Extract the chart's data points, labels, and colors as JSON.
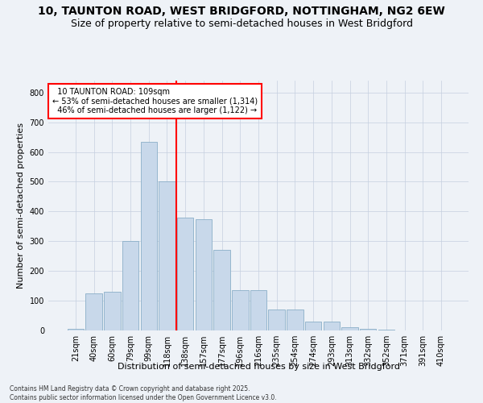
{
  "title_line1": "10, TAUNTON ROAD, WEST BRIDGFORD, NOTTINGHAM, NG2 6EW",
  "title_line2": "Size of property relative to semi-detached houses in West Bridgford",
  "xlabel": "Distribution of semi-detached houses by size in West Bridgford",
  "ylabel": "Number of semi-detached properties",
  "footnote": "Contains HM Land Registry data © Crown copyright and database right 2025.\nContains public sector information licensed under the Open Government Licence v3.0.",
  "bar_labels": [
    "21sqm",
    "40sqm",
    "60sqm",
    "79sqm",
    "99sqm",
    "118sqm",
    "138sqm",
    "157sqm",
    "177sqm",
    "196sqm",
    "216sqm",
    "235sqm",
    "254sqm",
    "274sqm",
    "293sqm",
    "313sqm",
    "332sqm",
    "352sqm",
    "371sqm",
    "391sqm",
    "410sqm"
  ],
  "bar_values": [
    5,
    125,
    130,
    300,
    635,
    500,
    380,
    375,
    270,
    135,
    135,
    70,
    70,
    30,
    30,
    10,
    5,
    2,
    1,
    1,
    0
  ],
  "bar_color": "#c8d8ea",
  "bar_edge_color": "#8aafc8",
  "vline_x": 5.5,
  "vline_color": "red",
  "property_label": "10 TAUNTON ROAD: 109sqm",
  "pct_smaller": 53,
  "pct_larger": 46,
  "n_smaller": 1314,
  "n_larger": 1122,
  "annotation_box_color": "red",
  "bg_color": "#eef2f7",
  "plot_bg_color": "#eef2f7",
  "ylim": [
    0,
    840
  ],
  "yticks": [
    0,
    100,
    200,
    300,
    400,
    500,
    600,
    700,
    800
  ],
  "grid_color": "#c5cfe0",
  "title_fontsize": 10,
  "subtitle_fontsize": 9,
  "axis_label_fontsize": 8,
  "tick_fontsize": 7,
  "footnote_fontsize": 5.5
}
